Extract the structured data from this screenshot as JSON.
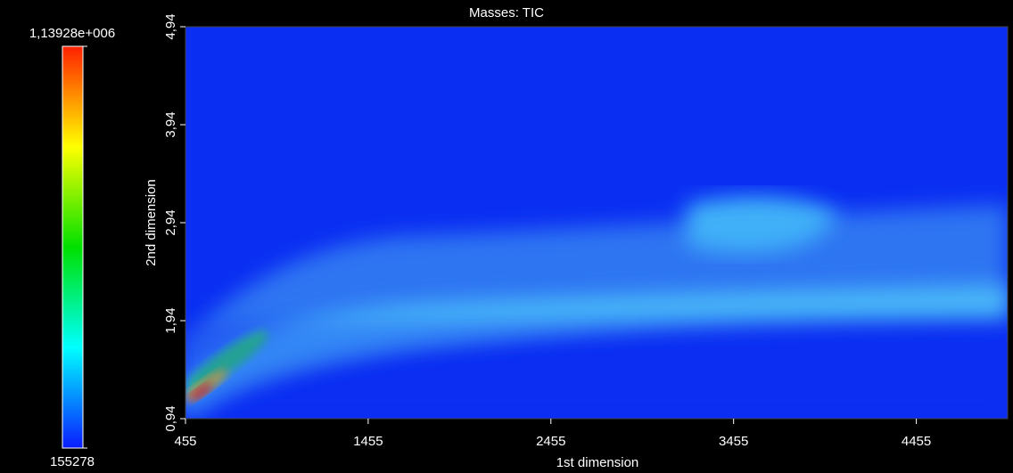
{
  "chart_data": {
    "type": "heatmap",
    "title": "Masses: TIC",
    "x_label": "1st dimension",
    "y_label": "2nd dimension",
    "xlim": [
      455,
      4955
    ],
    "xticks": [
      455,
      1455,
      2455,
      3455,
      4455
    ],
    "ylim": [
      0.94,
      4.94
    ],
    "yticks": [
      {
        "value": 0.94,
        "label": "0,94"
      },
      {
        "value": 1.94,
        "label": "1,94"
      },
      {
        "value": 2.94,
        "label": "2,94"
      },
      {
        "value": 3.94,
        "label": "3,94"
      },
      {
        "value": 4.94,
        "label": "4,94"
      }
    ],
    "colorbar": {
      "zlim": [
        155278,
        1139280
      ],
      "zticks": [
        155278,
        {
          "value": 1139280,
          "label": "1,13928e+006"
        }
      ],
      "colors": [
        "#0a1cff",
        "#00ffff",
        "#00e000",
        "#ffff00",
        "#ff2000"
      ]
    }
  }
}
